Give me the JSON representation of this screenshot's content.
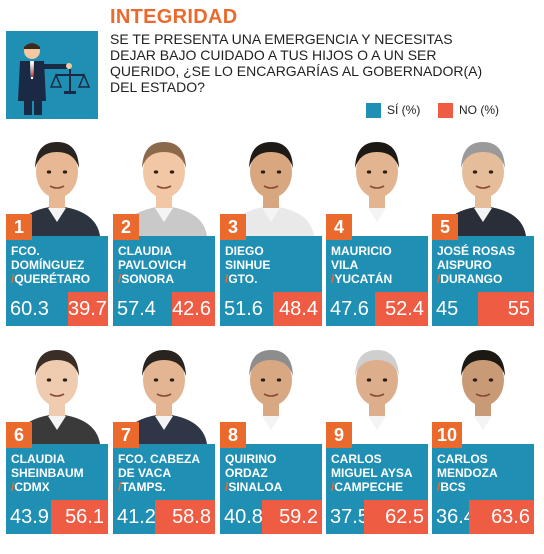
{
  "header": {
    "title": "INTEGRIDAD",
    "question": "SE TE PRESENTA UNA EMERGENCIA Y NECESITAS DEJAR BAJO CUIDADO A TUS HIJOS O A UN SER QUERIDO, ¿SE LO ENCARGARÍAS AL GOBERNADOR(A) DEL ESTADO?",
    "legend_si": "SÍ (%)",
    "legend_no": "NO (%)",
    "logo_icon": "person-with-scale-icon"
  },
  "colors": {
    "si": "#1f8fb4",
    "no": "#ee5c44",
    "accent": "#ea6a2e"
  },
  "chart_data": {
    "type": "bar",
    "title": "INTEGRIDAD",
    "subtitle": "SE TE PRESENTA UNA EMERGENCIA Y NECESITAS DEJAR BAJO CUIDADO A TUS HIJOS O A UN SER QUERIDO, ¿SE LO ENCARGARÍAS AL GOBERNADOR(A) DEL ESTADO?",
    "legend": [
      "SÍ (%)",
      "NO (%)"
    ],
    "items": [
      {
        "rank": "1",
        "name1": "FCO.",
        "name2": "DOMÍNGUEZ",
        "state": "QUERÉTARO",
        "si": "60.3",
        "no": "39.7"
      },
      {
        "rank": "2",
        "name1": "CLAUDIA",
        "name2": "PAVLOVICH",
        "state": "SONORA",
        "si": "57.4",
        "no": "42.6"
      },
      {
        "rank": "3",
        "name1": "DIEGO",
        "name2": "SINHUE",
        "state": "GTO.",
        "si": "51.6",
        "no": "48.4"
      },
      {
        "rank": "4",
        "name1": "MAURICIO",
        "name2": "VILA",
        "state": "YUCATÁN",
        "si": "47.6",
        "no": "52.4"
      },
      {
        "rank": "5",
        "name1": "JOSÉ ROSAS",
        "name2": "AISPURO",
        "state": "DURANGO",
        "si": "45",
        "no": "55"
      },
      {
        "rank": "6",
        "name1": "CLAUDIA",
        "name2": "SHEINBAUM",
        "state": "CDMX",
        "si": "43.9",
        "no": "56.1"
      },
      {
        "rank": "7",
        "name1": "FCO. CABEZA",
        "name2": "DE VACA",
        "state": "TAMPS.",
        "si": "41.2",
        "no": "58.8"
      },
      {
        "rank": "8",
        "name1": "QUIRINO",
        "name2": "ORDAZ",
        "state": "SINALOA",
        "si": "40.8",
        "no": "59.2"
      },
      {
        "rank": "9",
        "name1": "CARLOS",
        "name2": "MIGUEL AYSA",
        "state": "CAMPECHE",
        "si": "37.5",
        "no": "62.5"
      },
      {
        "rank": "10",
        "name1": "CARLOS",
        "name2": "MENDOZA",
        "state": "BCS",
        "si": "36.4",
        "no": "63.6"
      }
    ]
  }
}
